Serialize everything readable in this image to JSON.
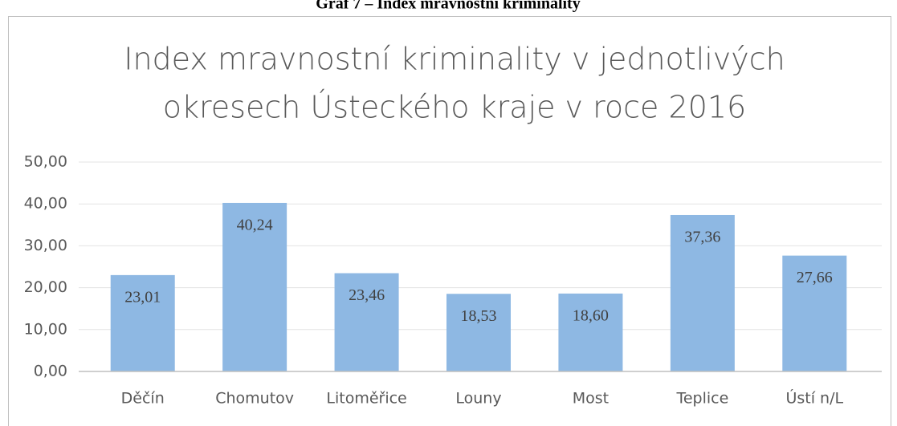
{
  "caption": "Graf 7 – Index mravnostní kriminality",
  "chart_data": {
    "type": "bar",
    "title": [
      "Index mravnostní kriminality v jednotlivých",
      "okresech Ústeckého kraje v roce 2016"
    ],
    "categories": [
      "Děčín",
      "Chomutov",
      "Litoměřice",
      "Louny",
      "Most",
      "Teplice",
      "Ústí n/L"
    ],
    "values": [
      23.01,
      40.24,
      23.46,
      18.53,
      18.6,
      37.36,
      27.66
    ],
    "value_labels": [
      "23,01",
      "40,24",
      "23,46",
      "18,53",
      "18,60",
      "37,36",
      "27,66"
    ],
    "color": "#8eb8e3",
    "ylim": [
      0,
      50
    ],
    "yticks": [
      {
        "value": 0,
        "label": "0,00"
      },
      {
        "value": 10,
        "label": "10,00"
      },
      {
        "value": 20,
        "label": "20,00"
      },
      {
        "value": 30,
        "label": "30,00"
      },
      {
        "value": 40,
        "label": "40,00"
      },
      {
        "value": 50,
        "label": "50,00"
      }
    ],
    "grid": true
  }
}
